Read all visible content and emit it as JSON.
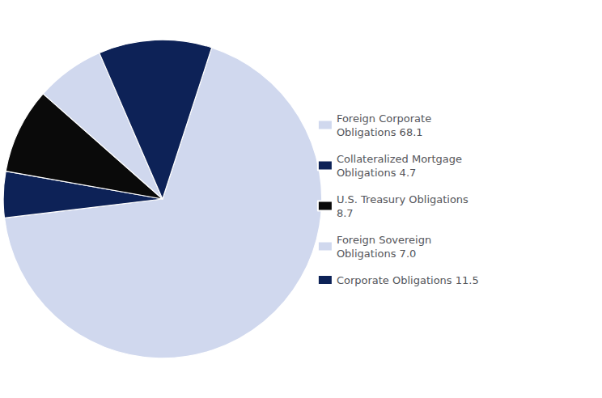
{
  "chart_data": {
    "type": "pie",
    "categories": [
      "Foreign Corporate\nObligations 68.1",
      "Collateralized Mortgage\nObligations 4.7",
      "U.S. Treasury Obligations\n8.7",
      "Foreign Sovereign\nObligations 7.0",
      "Corporate Obligations 11.5"
    ],
    "values": [
      68.1,
      4.7,
      8.7,
      7.0,
      11.5
    ],
    "colors": [
      "#d0d8ee",
      "#0d2257",
      "#0a0a0a",
      "#d0d8ee",
      "#0d2257"
    ],
    "legend": "right"
  }
}
